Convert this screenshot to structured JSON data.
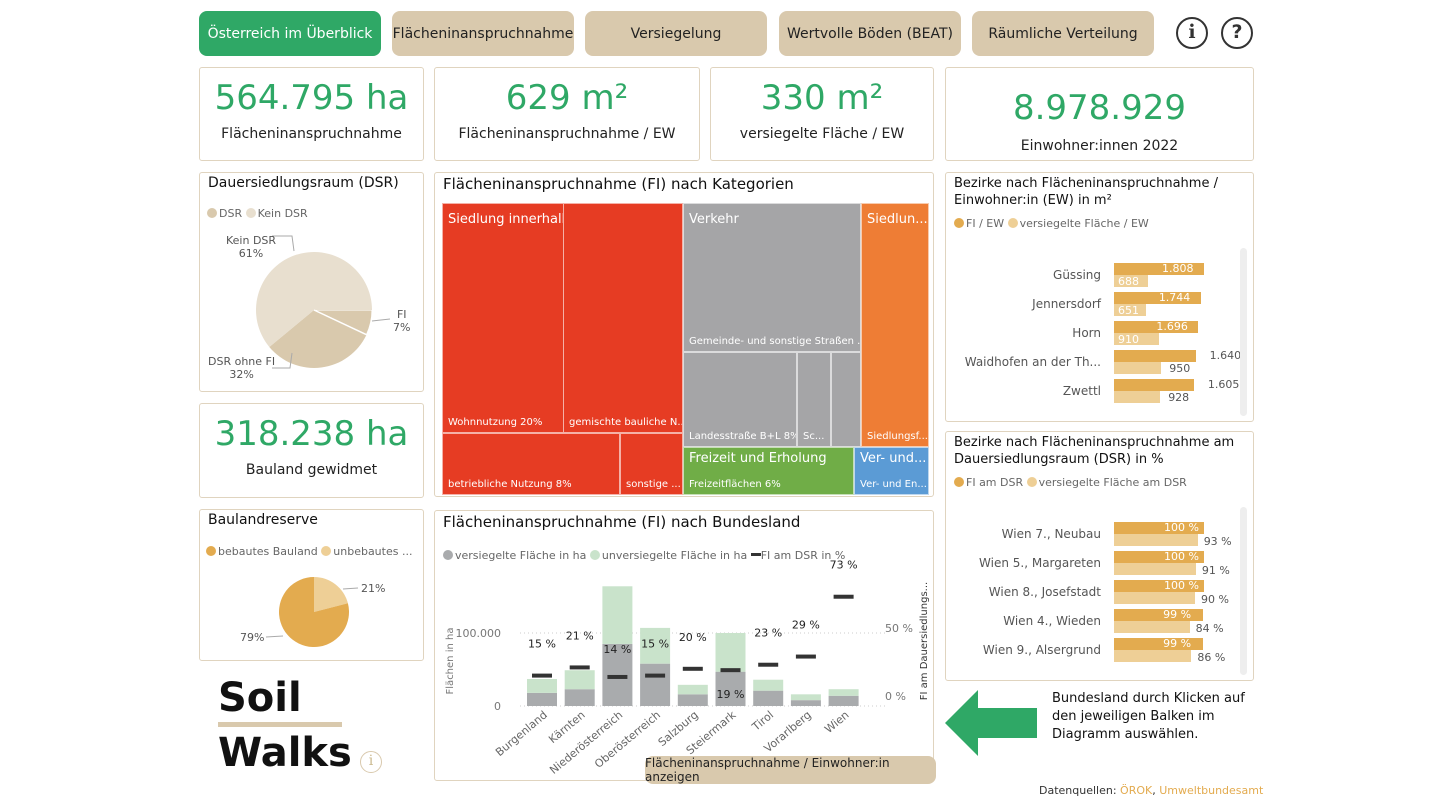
{
  "nav": [
    "Österreich im Überblick",
    "Flächeninanspruchnahme",
    "Versiegelung",
    "Wertvolle Böden (BEAT)",
    "Räumliche Verteilung"
  ],
  "kpis": [
    {
      "value": "564.795 ha",
      "label": "Flächeninanspruchnahme"
    },
    {
      "value": "629 m²",
      "label": "Flächeninanspruchnahme / EW"
    },
    {
      "value": "330 m²",
      "label": "versiegelte Fläche / EW"
    },
    {
      "value": "8.978.929",
      "label": "Einwohner:innen 2022"
    },
    {
      "value": "318.238 ha",
      "label": "Bauland gewidmet"
    }
  ],
  "colors": {
    "accent": "#2fa866",
    "beige": "#d9c9ad",
    "gold": "#e3ab4f",
    "lightgold": "#eecf96",
    "red": "#e63c23",
    "grey": "#a5a5a7",
    "orange": "#ee7d35",
    "green": "#70ad47",
    "blue": "#5b9bd5",
    "sealed": "#a9abad",
    "unsealed": "#c9e3cb"
  },
  "dsr": {
    "title": "Dauersiedlungsraum (DSR)",
    "legend": [
      "DSR",
      "Kein DSR"
    ],
    "slices": [
      {
        "label": "Kein DSR",
        "pct": "61%",
        "value": 61
      },
      {
        "label": "FI",
        "pct": "7%",
        "value": 7
      },
      {
        "label": "DSR ohne FI",
        "pct": "32%",
        "value": 32
      }
    ]
  },
  "bauland": {
    "title": "Baulandreserve",
    "legend": [
      "bebautes Bauland",
      "unbebautes ..."
    ],
    "slices": [
      {
        "pct": "21%",
        "value": 21
      },
      {
        "pct": "79%",
        "value": 79
      }
    ]
  },
  "treemap": {
    "title": "Flächeninanspruchnahme (FI) nach Kategorien",
    "siedlung": "Siedlung innerhalb Baulandwidmung",
    "wohn": "Wohnnutzung 20%",
    "gemischt": "gemischte bauliche N...",
    "betrieb": "betriebliche Nutzung 8%",
    "sonstige": "sonstige ...",
    "verkehr": "Verkehr",
    "gemeinde": "Gemeinde- und sonstige Straßen ...",
    "landes": "Landesstraße B+L 8%",
    "sc": "Sc...",
    "siedl2": "Siedlun...",
    "siedl2sub": "Siedlungsf...",
    "freizeit": "Freizeit und Erholung",
    "freizeitsub": "Freizeitflächen 6%",
    "ver": "Ver- und...",
    "versub": "Ver- und En..."
  },
  "chart_data": {
    "type": "bar",
    "title": "Flächeninanspruchnahme (FI) nach Bundesland",
    "legend": [
      "versiegelte Fläche in ha",
      "unversiegelte Fläche in ha",
      "FI am DSR in %"
    ],
    "ylabel": "Flächen in ha",
    "y2label": "FI am Dauersiedlungs...",
    "yticks": [
      "0",
      "100.000"
    ],
    "y2ticks": [
      "0 %",
      "50 %"
    ],
    "ylim": [
      0,
      170000
    ],
    "y2lim": [
      0,
      100
    ],
    "categories": [
      "Burgenland",
      "Kärnten",
      "Niederösterreich",
      "Oberösterreich",
      "Salzburg",
      "Steiermark",
      "Tirol",
      "Vorarlberg",
      "Wien"
    ],
    "sealed": [
      18000,
      23000,
      85000,
      58000,
      16000,
      47000,
      21000,
      8000,
      14000
    ],
    "unsealed": [
      19000,
      26000,
      79000,
      49000,
      13000,
      53000,
      15000,
      8000,
      9000
    ],
    "fi_dsr": [
      15,
      21,
      14,
      15,
      20,
      19,
      23,
      29,
      73
    ],
    "fi_dsr_labels": [
      "15 %",
      "21 %",
      "14 %",
      "15 %",
      "20 %",
      "19 %",
      "23 %",
      "29 %",
      "73 %"
    ]
  },
  "toggle_button": "Flächeninanspruchnahme / Einwohner:in anzeigen",
  "bez_ew": {
    "title1": "Bezirke nach Flächeninanspruchnahme /",
    "title2": "Einwohner:in (EW) in m²",
    "legend": [
      "FI / EW",
      "versiegelte Fläche / EW"
    ],
    "rows": [
      {
        "name": "Güssing",
        "fi": 1808,
        "fi_l": "1.808",
        "s": 688,
        "s_l": "688"
      },
      {
        "name": "Jennersdorf",
        "fi": 1744,
        "fi_l": "1.744",
        "s": 651,
        "s_l": "651"
      },
      {
        "name": "Horn",
        "fi": 1696,
        "fi_l": "1.696",
        "s": 910,
        "s_l": "910"
      },
      {
        "name": "Waidhofen an der Th...",
        "fi": 1640,
        "fi_l": "1.640",
        "s": 950,
        "s_l": "950"
      },
      {
        "name": "Zwettl",
        "fi": 1605,
        "fi_l": "1.605",
        "s": 928,
        "s_l": "928"
      }
    ]
  },
  "bez_dsr": {
    "title1": "Bezirke nach Flächeninanspruchnahme am",
    "title2": "Dauersiedlungsraum (DSR) in %",
    "legend": [
      "FI am DSR",
      "versiegelte Fläche am DSR"
    ],
    "rows": [
      {
        "name": "Wien  7., Neubau",
        "fi": 100,
        "fi_l": "100 %",
        "s": 93,
        "s_l": "93 %"
      },
      {
        "name": "Wien  5., Margareten",
        "fi": 100,
        "fi_l": "100 %",
        "s": 91,
        "s_l": "91 %"
      },
      {
        "name": "Wien  8., Josefstadt",
        "fi": 100,
        "fi_l": "100 %",
        "s": 90,
        "s_l": "90 %"
      },
      {
        "name": "Wien  4., Wieden",
        "fi": 99,
        "fi_l": "99 %",
        "s": 84,
        "s_l": "84 %"
      },
      {
        "name": "Wien  9., Alsergrund",
        "fi": 99,
        "fi_l": "99 %",
        "s": 86,
        "s_l": "86 %"
      }
    ]
  },
  "logo": {
    "line1": "Soil",
    "line2": "Walks"
  },
  "hint": "Bundesland durch Klicken auf den jeweiligen Balken im Diagramm auswählen.",
  "sources": {
    "label": "Datenquellen:",
    "links": [
      "ÖROK",
      "Umweltbundesamt"
    ]
  },
  "icons": {
    "info": "i",
    "help": "?"
  }
}
